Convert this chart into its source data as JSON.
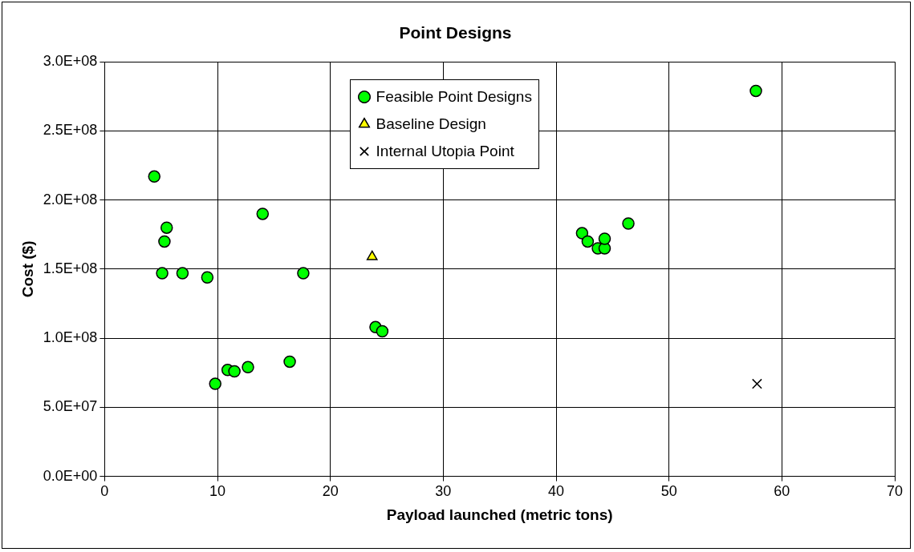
{
  "chart_data": {
    "type": "scatter",
    "title": "Point Designs",
    "xlabel": "Payload launched (metric tons)",
    "ylabel": "Cost ($)",
    "xlim": [
      0,
      70
    ],
    "xticks": [
      0,
      10,
      20,
      30,
      40,
      50,
      60,
      70
    ],
    "ylim": [
      0,
      300000000
    ],
    "yticks": [
      {
        "value": 0,
        "label": "0.0E+00"
      },
      {
        "value": 50000000,
        "label": "5.0E+07"
      },
      {
        "value": 100000000,
        "label": "1.0E+08"
      },
      {
        "value": 150000000,
        "label": "1.5E+08"
      },
      {
        "value": 200000000,
        "label": "2.0E+08"
      },
      {
        "value": 250000000,
        "label": "2.5E+08"
      },
      {
        "value": 300000000,
        "label": "3.0E+08"
      }
    ],
    "grid": true,
    "legend": "top",
    "series": [
      {
        "name": "Feasible Point Designs",
        "color": "#00ff00",
        "marker": "circle",
        "x": [
          4.4,
          5.5,
          5.3,
          5.1,
          6.9,
          9.1,
          14.0,
          17.6,
          24.0,
          24.6,
          9.8,
          10.9,
          11.5,
          12.7,
          16.4,
          57.7,
          42.3,
          42.8,
          43.7,
          44.3,
          44.3,
          46.4
        ],
        "values": [
          217000000,
          180000000,
          170000000,
          147000000,
          147000000,
          144000000,
          190000000,
          147000000,
          108000000,
          105000000,
          67000000,
          77000000,
          76000000,
          79000000,
          83000000,
          279000000,
          176000000,
          170000000,
          165000000,
          165000000,
          172000000,
          183000000
        ]
      },
      {
        "name": "Baseline Design",
        "color": "#ffff00",
        "marker": "triangle",
        "x": [
          23.7
        ],
        "values": [
          159000000
        ]
      },
      {
        "name": "Internal Utopia Point",
        "color": "#000000",
        "marker": "cross",
        "x": [
          57.8
        ],
        "values": [
          67000000
        ]
      }
    ]
  }
}
